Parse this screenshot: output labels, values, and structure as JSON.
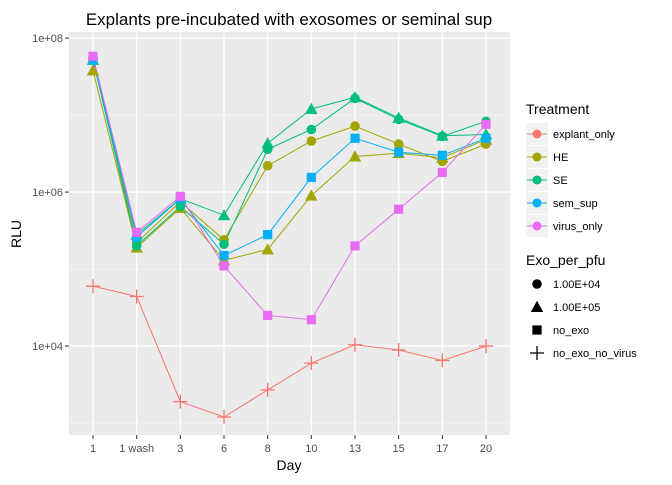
{
  "chart_data": {
    "type": "line",
    "title": "Explants pre-incubated with exosomes or seminal sup",
    "xlabel": "Day",
    "ylabel": "RLU",
    "y_scale": "log10",
    "ylim": [
      700,
      120000000
    ],
    "y_ticks": [
      {
        "value": 100000000,
        "label": "1e+08"
      },
      {
        "value": 1000000,
        "label": "1e+06"
      },
      {
        "value": 10000,
        "label": "1e+04"
      }
    ],
    "categories": [
      "1",
      "1 wash",
      "3",
      "6",
      "8",
      "10",
      "13",
      "15",
      "17",
      "20"
    ],
    "grid": true,
    "legend_position": "right",
    "legends": [
      {
        "title": "Treatment",
        "entries": [
          "explant_only",
          "HE",
          "SE",
          "sem_sup",
          "virus_only"
        ]
      },
      {
        "title": "Exo_per_pfu",
        "entries": [
          "1.00E+04",
          "1.00E+05",
          "no_exo",
          "no_exo_no_virus"
        ]
      }
    ],
    "colors": {
      "explant_only": "#F8766D",
      "HE": "#A3A500",
      "SE": "#00BF7D",
      "sem_sup": "#00B0F6",
      "virus_only": "#E76BF3"
    },
    "series": [
      {
        "treatment": "explant_only",
        "exo": "no_exo_no_virus",
        "shape": "cross",
        "values": [
          60000,
          44000,
          1900,
          1200,
          2700,
          6000,
          10400,
          8900,
          6500,
          10000
        ]
      },
      {
        "treatment": "HE",
        "exo": "1.00E+04",
        "shape": "circle",
        "values": [
          55000000,
          220000,
          750000,
          240000,
          2200000,
          4600000,
          7200000,
          4200000,
          2500000,
          4200000
        ]
      },
      {
        "treatment": "HE",
        "exo": "1.00E+05",
        "shape": "triangle",
        "values": [
          38000000,
          190000,
          620000,
          130000,
          180000,
          900000,
          2900000,
          3200000,
          2800000,
          4800000
        ]
      },
      {
        "treatment": "SE",
        "exo": "1.00E+04",
        "shape": "circle",
        "values": [
          52000000,
          200000,
          650000,
          210000,
          3600000,
          6500000,
          16500000,
          8800000,
          5300000,
          8300000
        ]
      },
      {
        "treatment": "SE",
        "exo": "1.00E+05",
        "shape": "triangle",
        "values": [
          52000000,
          280000,
          820000,
          500000,
          4300000,
          12000000,
          17000000,
          9200000,
          5400000,
          5600000
        ]
      },
      {
        "treatment": "sem_sup",
        "exo": "no_exo",
        "shape": "square",
        "values": [
          52000000,
          260000,
          820000,
          150000,
          280000,
          1550000,
          5000000,
          3300000,
          3000000,
          5000000
        ]
      },
      {
        "treatment": "virus_only",
        "exo": "no_exo",
        "shape": "square",
        "values": [
          58000000,
          300000,
          880000,
          110000,
          25000,
          22000,
          200000,
          600000,
          1800000,
          7600000
        ]
      }
    ]
  }
}
